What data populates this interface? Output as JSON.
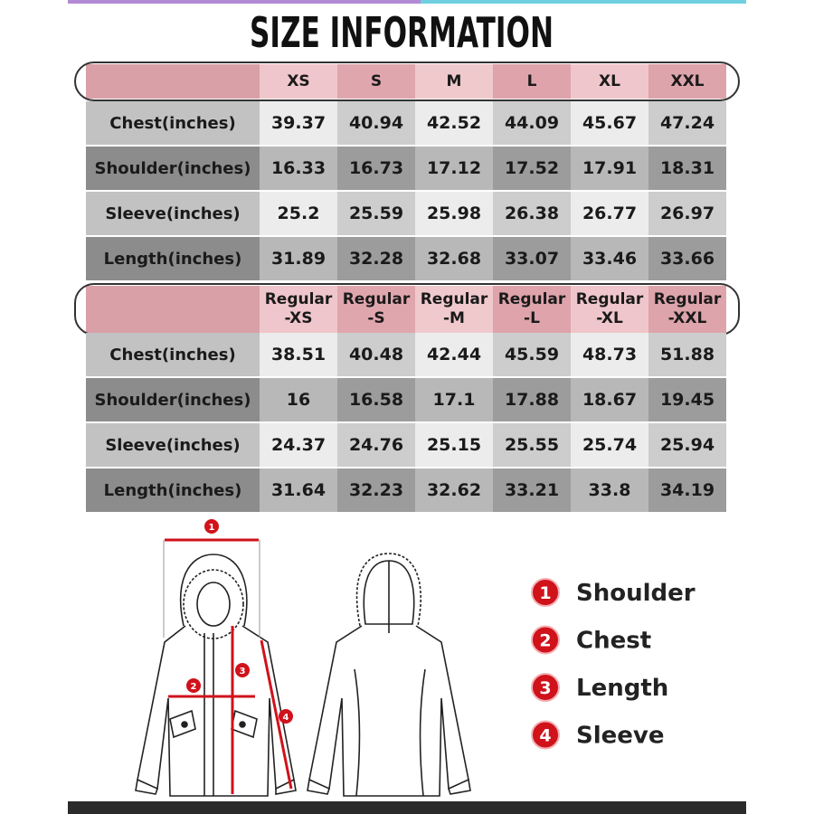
{
  "title": "SIZE INFORMATION",
  "tables": [
    {
      "header": [
        "XS",
        "S",
        "M",
        "L",
        "XL",
        "XXL"
      ],
      "rows": [
        {
          "label": "Chest(inches)",
          "values": [
            "39.37",
            "40.94",
            "42.52",
            "44.09",
            "45.67",
            "47.24"
          ]
        },
        {
          "label": "Shoulder(inches)",
          "values": [
            "16.33",
            "16.73",
            "17.12",
            "17.52",
            "17.91",
            "18.31"
          ]
        },
        {
          "label": "Sleeve(inches)",
          "values": [
            "25.2",
            "25.59",
            "25.98",
            "26.38",
            "26.77",
            "26.97"
          ]
        },
        {
          "label": "Length(inches)",
          "values": [
            "31.89",
            "32.28",
            "32.68",
            "33.07",
            "33.46",
            "33.66"
          ]
        }
      ]
    },
    {
      "header": [
        "Regular\n-XS",
        "Regular\n-S",
        "Regular\n-M",
        "Regular\n-L",
        "Regular\n-XL",
        "Regular\n-XXL"
      ],
      "rows": [
        {
          "label": "Chest(inches)",
          "values": [
            "38.51",
            "40.48",
            "42.44",
            "45.59",
            "48.73",
            "51.88"
          ]
        },
        {
          "label": "Shoulder(inches)",
          "values": [
            "16",
            "16.58",
            "17.1",
            "17.88",
            "18.67",
            "19.45"
          ]
        },
        {
          "label": "Sleeve(inches)",
          "values": [
            "24.37",
            "24.76",
            "25.15",
            "25.55",
            "25.74",
            "25.94"
          ]
        },
        {
          "label": "Length(inches)",
          "values": [
            "31.64",
            "32.23",
            "32.62",
            "33.21",
            "33.8",
            "34.19"
          ]
        }
      ]
    }
  ],
  "legend": {
    "items": [
      {
        "number": "1",
        "label": "Shoulder"
      },
      {
        "number": "2",
        "label": "Chest"
      },
      {
        "number": "3",
        "label": "Length"
      },
      {
        "number": "4",
        "label": "Sleeve"
      }
    ]
  }
}
